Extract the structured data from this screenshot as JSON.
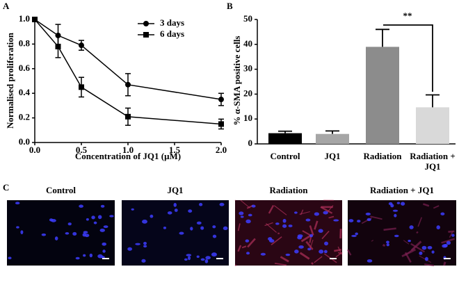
{
  "chart_data": [
    {
      "type": "line",
      "panel": "A",
      "x_label": "Concentration of JQ1 (μM)",
      "y_label": "Normalised proliferation",
      "x": [
        0,
        0.25,
        0.5,
        1,
        2
      ],
      "series": [
        {
          "name": "3 days",
          "color": "#000000",
          "marker": "circle",
          "values": [
            1.0,
            0.87,
            0.79,
            0.47,
            0.35
          ],
          "errors": [
            0,
            0.09,
            0.04,
            0.09,
            0.05
          ]
        },
        {
          "name": "6 days",
          "color": "#000000",
          "marker": "square",
          "values": [
            1.0,
            0.78,
            0.45,
            0.21,
            0.15
          ],
          "errors": [
            0,
            0.09,
            0.08,
            0.07,
            0.04
          ]
        }
      ],
      "xlim": [
        0,
        2
      ],
      "xticks": [
        {
          "value": 0,
          "label": "0.0"
        },
        0.5,
        {
          "value": 1,
          "label": "1.0"
        },
        1.5,
        {
          "value": 2,
          "label": "2.0"
        }
      ],
      "ylim": [
        0,
        1
      ],
      "yticks": [
        {
          "value": 0,
          "label": "0.0"
        },
        0.2,
        0.4,
        0.6,
        0.8,
        {
          "value": 1,
          "label": "1.0"
        }
      ],
      "legend": "top-right"
    },
    {
      "type": "bar",
      "panel": "B",
      "y_label": "% α-SMA positive cells",
      "categories": [
        "Control",
        "JQ1",
        "Radiation",
        "Radiation + JQ1"
      ],
      "values": [
        4.3,
        4.0,
        39.0,
        14.7
      ],
      "errors": [
        0.8,
        1.2,
        7.0,
        5.0
      ],
      "colors": [
        "#000000",
        "#a6a6a6",
        "#8c8c8c",
        "#d9d9d9"
      ],
      "ylim": [
        0,
        50
      ],
      "yticks": [
        0,
        10,
        20,
        30,
        40,
        50
      ],
      "annotation": "**"
    }
  ],
  "panel_c": {
    "panel": "C",
    "images": [
      "Control",
      "JQ1",
      "Radiation",
      "Radiation + JQ1"
    ]
  }
}
